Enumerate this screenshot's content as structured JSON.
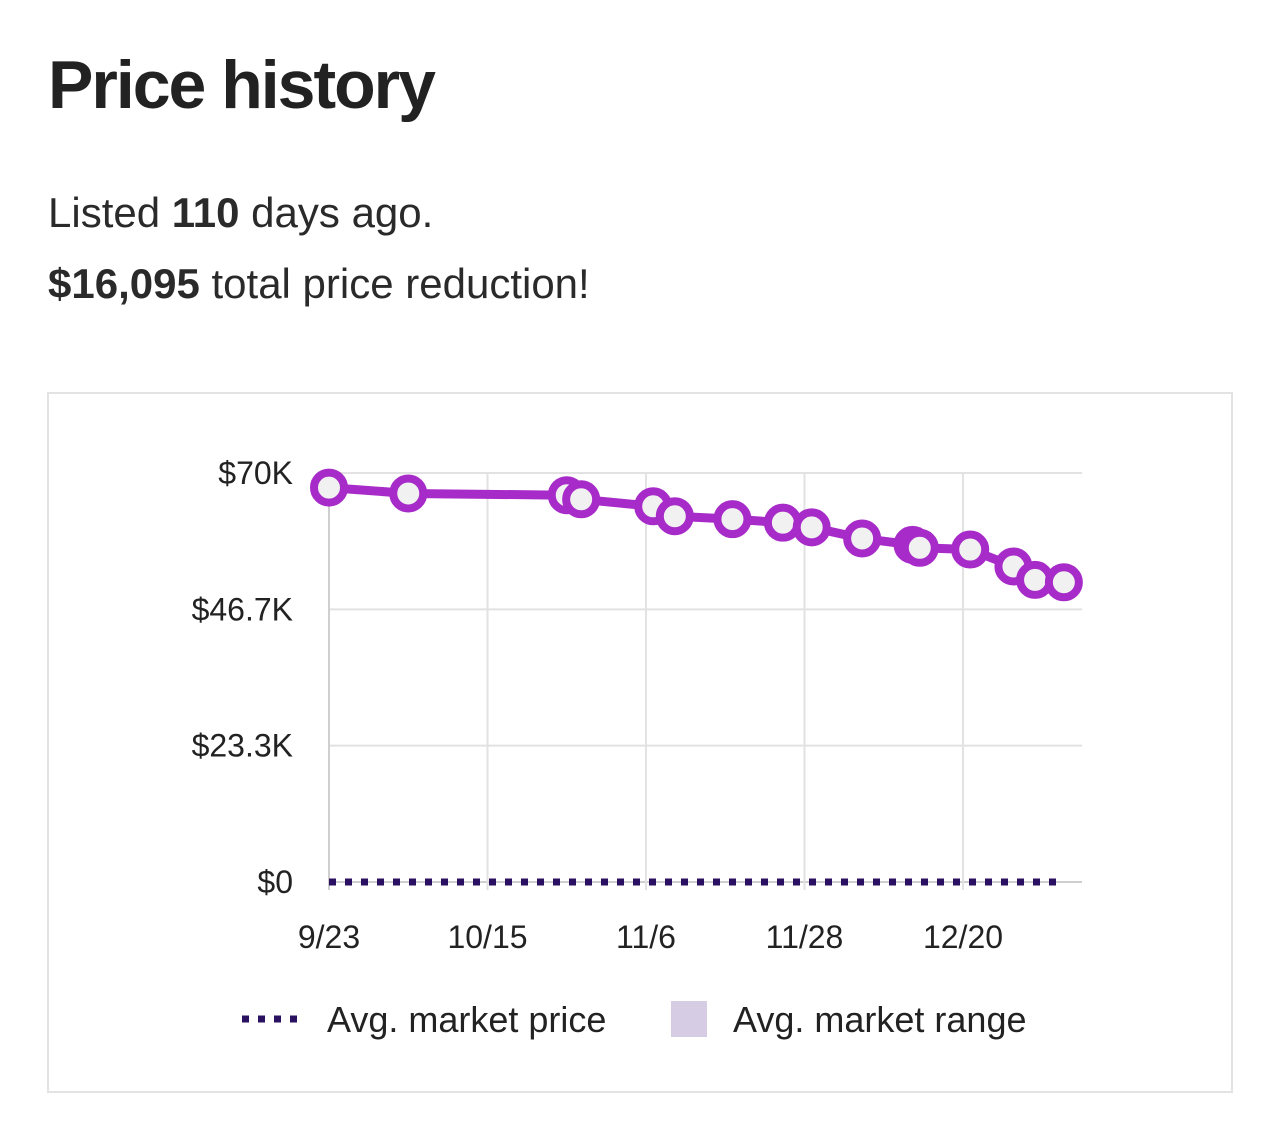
{
  "header": {
    "title": "Price history",
    "listed_prefix": "Listed ",
    "listed_days": "110",
    "listed_suffix": " days ago.",
    "reduction_amount": "$16,095",
    "reduction_suffix": " total price reduction!"
  },
  "colors": {
    "price_line": "#a72bc8",
    "marker_fill": "#f1f1f1",
    "avg_market_price": "#2a1060",
    "avg_market_range": "#d6cce3",
    "grid": "#e2e2e2"
  },
  "chart_data": {
    "type": "line",
    "title": "",
    "xlabel": "",
    "ylabel": "",
    "x_ticks": [
      "9/23",
      "10/15",
      "11/6",
      "11/28",
      "12/20"
    ],
    "y_ticks": [
      "$0",
      "$23.3K",
      "$46.7K",
      "$70K"
    ],
    "ylim": [
      0,
      70000
    ],
    "xlim": [
      "9/23",
      "1/3"
    ],
    "grid": true,
    "legend_position": "bottom",
    "series": [
      {
        "key": "listing",
        "x": [
          "9/23",
          "10/4",
          "10/26",
          "10/28",
          "11/7",
          "11/10",
          "11/18",
          "11/25",
          "11/29",
          "12/6",
          "12/13",
          "12/14",
          "12/21",
          "12/27",
          "12/30",
          "1/3"
        ],
        "values": [
          67500,
          66500,
          66200,
          65500,
          64300,
          62600,
          62100,
          61500,
          60700,
          58800,
          57700,
          57200,
          56900,
          54000,
          51700,
          51300
        ]
      },
      {
        "name": "Avg. market price",
        "style": "dotted",
        "x": [
          "9/23",
          "1/3"
        ],
        "values": [
          0,
          0
        ]
      }
    ],
    "legend": [
      {
        "label": "Avg. market price",
        "symbol": "dotted-line"
      },
      {
        "label": "Avg. market range",
        "symbol": "square"
      }
    ]
  }
}
